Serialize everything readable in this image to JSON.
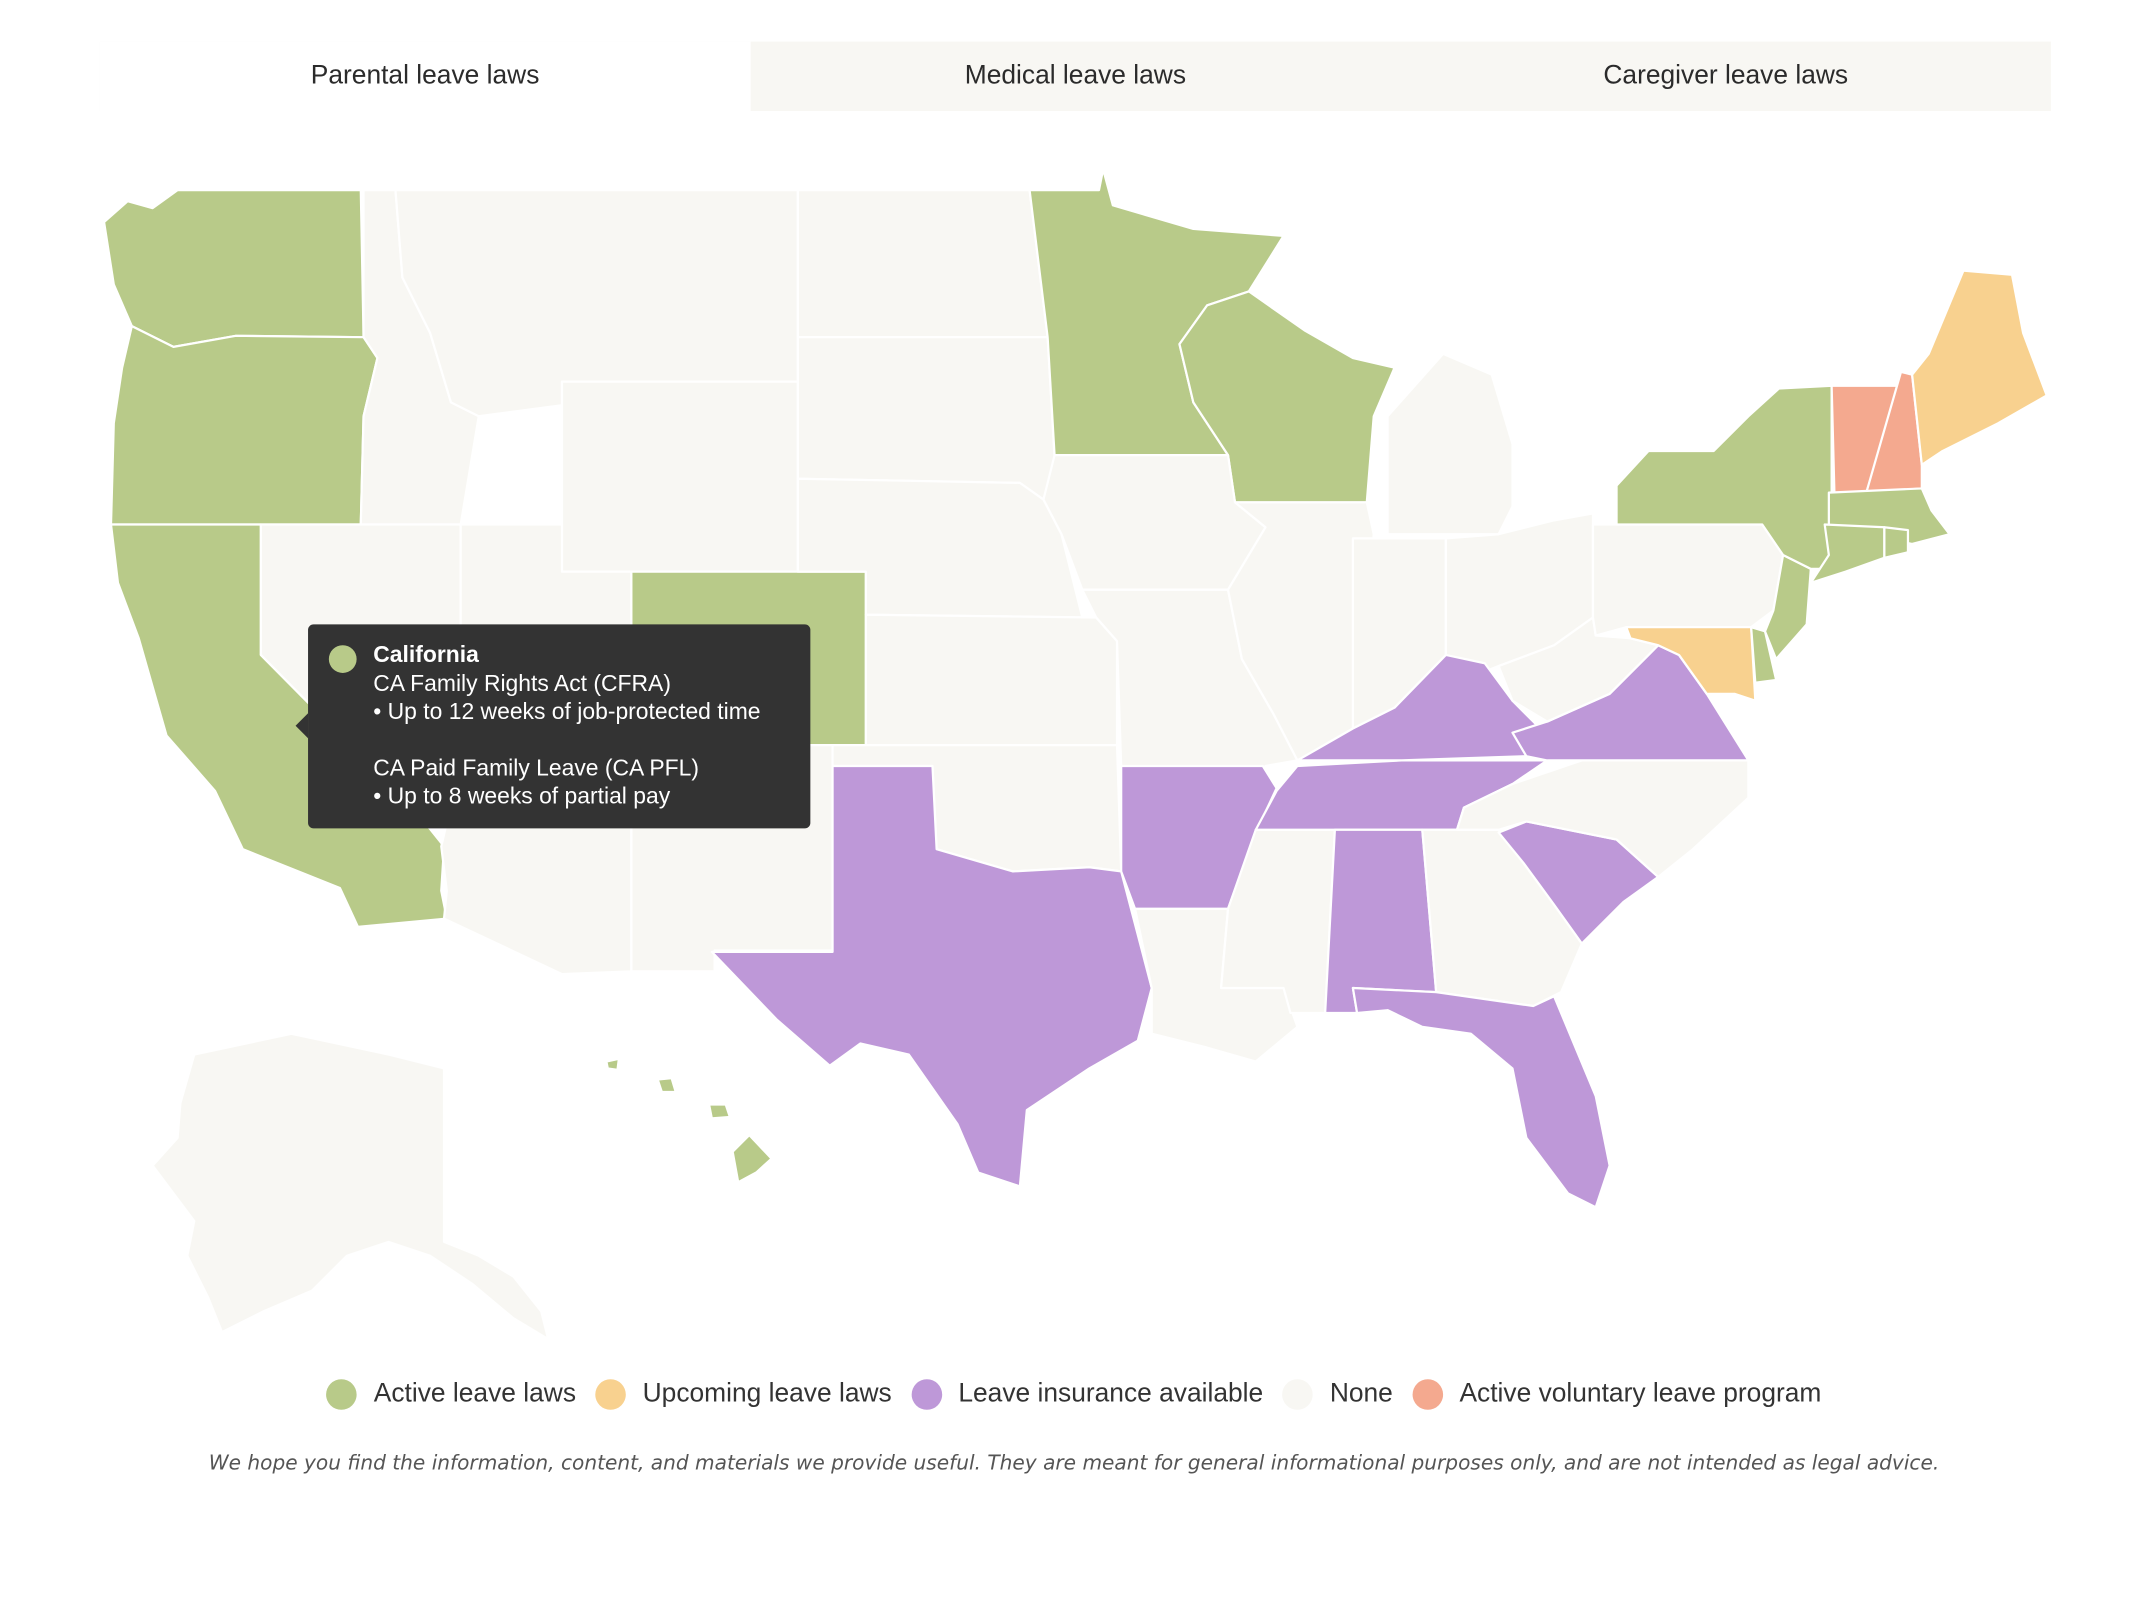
{
  "tabs": [
    {
      "label": "Parental leave laws",
      "active": true
    },
    {
      "label": "Medical leave laws",
      "active": false
    },
    {
      "label": "Caregiver leave laws",
      "active": false
    }
  ],
  "colors": {
    "active": "#b8ca89",
    "upcoming": "#f8d18f",
    "insurance": "#be98d8",
    "none": "#f8f7f3",
    "voluntary": "#f4a98f",
    "border": "#ffffff"
  },
  "legend": [
    {
      "label": "Active leave laws",
      "color": "#b8ca89"
    },
    {
      "label": "Upcoming leave laws",
      "color": "#f8d18f"
    },
    {
      "label": "Leave insurance available",
      "color": "#be98d8"
    },
    {
      "label": "None",
      "color": "#f8f7f3"
    },
    {
      "label": "Active voluntary leave program",
      "color": "#f4a98f"
    }
  ],
  "tooltip": {
    "state": "California",
    "color": "#b8ca89",
    "line1": "CA Family Rights Act (CFRA)",
    "line2": "• Up to 12 weeks of job-protected time",
    "line3": "CA Paid Family Leave (CA PFL)",
    "line4": "• Up to 8 weeks of partial pay"
  },
  "state_status": {
    "Washington": "active",
    "Oregon": "active",
    "California": "active",
    "Colorado": "active",
    "Minnesota": "active",
    "Wisconsin": "active",
    "New York": "active",
    "New Jersey": "active",
    "Connecticut": "active",
    "Rhode Island": "active",
    "Massachusetts": "active",
    "Delaware": "active",
    "Hawaii": "active",
    "Maine": "upcoming",
    "Maryland": "upcoming",
    "Vermont": "voluntary",
    "New Hampshire": "voluntary",
    "Texas": "insurance",
    "Arkansas": "insurance",
    "Tennessee": "insurance",
    "Kentucky": "insurance",
    "Virginia": "insurance",
    "Alabama": "insurance",
    "Florida": "insurance",
    "South Carolina": "insurance",
    "Idaho": "none",
    "Montana": "none",
    "Wyoming": "none",
    "Nevada": "none",
    "Utah": "none",
    "Arizona": "none",
    "New Mexico": "none",
    "North Dakota": "none",
    "South Dakota": "none",
    "Nebraska": "none",
    "Kansas": "none",
    "Oklahoma": "none",
    "Iowa": "none",
    "Missouri": "none",
    "Louisiana": "none",
    "Mississippi": "none",
    "Illinois": "none",
    "Indiana": "none",
    "Michigan": "none",
    "Ohio": "none",
    "West Virginia": "none",
    "Pennsylvania": "none",
    "North Carolina": "none",
    "Georgia": "none",
    "Alaska": "none"
  },
  "disclaimer": "We hope you find the information, content, and materials we provide useful. They are meant for general informational purposes only, and are not intended as legal advice."
}
